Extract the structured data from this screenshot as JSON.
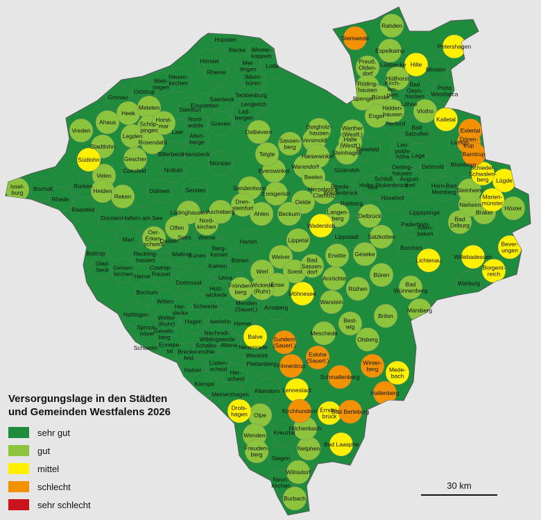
{
  "legend": {
    "title": "Versorgungslage in den Städten\nund Gemeinden Westfalens 2026",
    "categories": [
      {
        "label": "sehr gut",
        "color": "#1e8c3c",
        "municipalities": [
          "Hopsten",
          "Recke",
          "Wester-\nkappeln",
          "Hörstel",
          "Met-\ntingen",
          "Lotte",
          "Rheine",
          "Ibben-\nbüren",
          "Neuen-\nkirchen",
          "Wett-\nringen",
          "Ochtrup",
          "Gronau",
          "Emsdetten",
          "Steinfurt",
          "Tecklenburg",
          "Saerbeck",
          "Lengerich",
          "Lad-\nbergen",
          "Greven",
          "Nord-\nwalde",
          "Alten-\nberge",
          "Laer",
          "Billerbeck",
          "Havixbeck",
          "Münster",
          "Coesfeld",
          "Nottuln",
          "Dülmen",
          "Senden",
          "Borken",
          "Bocholt",
          "Rhede",
          "Raesfeld",
          "Dorsten",
          "Haltern am See",
          "Selm",
          "Werne",
          "Marl",
          "Datteln",
          "Reckling-\nhausen",
          "Bottrop",
          "Glad-\nbeck",
          "Gelsen-\nkirchen",
          "Castrop-\nRauxel",
          "Waltrop",
          "Lünen",
          "Berg-\nkamen",
          "Kamen",
          "Bönen",
          "Hamm",
          "Herne",
          "Dortmund",
          "Unna",
          "Holz-\nwickede",
          "Bochum",
          "Witten",
          "Her-\ndecke",
          "Schwerte",
          "Menden\n(Sauerl.)",
          "Arnsberg",
          "Hattingen",
          "Wetter\n(Ruhr)",
          "Hagen",
          "Iserlohn",
          "Hemer",
          "Sprock-\nhövel",
          "Gevels-\nberg",
          "Schwelm",
          "Ennepe-\ntal",
          "Brecker-\nfeld",
          "Nachrodt-\nWiblingwerde",
          "Altena",
          "Neuenrade",
          "Schalks-\nmühle",
          "Lüden-\nscheid",
          "Halver",
          "Kierspe",
          "Werdohl",
          "Plettenberg",
          "Her-\nscheid",
          "Meinerzhagen",
          "Attendorn",
          "Kreuztal",
          "Siegen",
          "Neun-\nkirchen",
          "Minden",
          "Porta\nWestfalica",
          "Bad\nOeyn-\nhausen",
          "Löhne",
          "Herford",
          "Bad\nSalzuflen",
          "Bielefeld",
          "Leo-\npolds-\nhöhe",
          "Oerling-\nhausen",
          "Lage",
          "Detmold",
          "Blomberg",
          "Lemgo",
          "Horn-Bad\nMeinberg",
          "Schloß\nHolte-Stukenbrock",
          "Verl",
          "Gütersloh",
          "Rheda-\nWiedenbrück",
          "Lippspringe",
          "Paderborn",
          "Borchen",
          "Warburg",
          "Alten-\nbeken",
          "Hövelhof",
          "August-\ndorf",
          "Lübbecke",
          "Kirch-\nlen-\ngern",
          "Lippstadt",
          "Rietberg"
        ]
      },
      {
        "label": "gut",
        "color": "#8cc43e",
        "municipalities": [
          "Rahden",
          "Espelkamp",
          "Preuß.\nOlden-\ndorf",
          "Hüllhorst",
          "Röding-\nhausen",
          "Bünde",
          "Hidden-\nhausen",
          "Enger",
          "Spenge",
          "Vlotho",
          "Borgholz-\nhausen",
          "Werther\n(Westf.)",
          "Versmold",
          "Halle\n(Westf.)",
          "Steinhagen",
          "Harsewinkel",
          "Sassen-\nberg",
          "Everswinkel",
          "Warendorf",
          "Beelen",
          "Sendenhorst",
          "Dren-\nsteinfurt",
          "Ennigerloh",
          "Oelde",
          "Herzebrock-\nClarholz",
          "Ahlen",
          "Beckum",
          "Lippetal",
          "Welver",
          "Soest",
          "Werl",
          "Ense",
          "Wickede\n(Ruhr)",
          "Bad\nSassen-\ndorf",
          "Anröchte",
          "Erwitte",
          "Geseke",
          "Rüthen",
          "Warstein",
          "Büren",
          "Bad\nWünnenberg",
          "Marsberg",
          "Brilon",
          "Olsberg",
          "Best-\nwig",
          "Meschede",
          "Delbrück",
          "Langen-\nberg",
          "Salzkotten",
          "Bad\nDriburg",
          "Brakel",
          "Höxter",
          "Nieheim",
          "Steinheim",
          "Heek",
          "Ahaus",
          "Metelen",
          "Schöp-\npingen",
          "Legden",
          "Rosendahl",
          "Vreden",
          "Stadtlohn",
          "Gescher",
          "Velen",
          "Heiden",
          "Reken",
          "Issel-\nburg",
          "Horst-\nmar",
          "Ostbevern",
          "Telgte",
          "Lüdinghausen",
          "Olfen",
          "Nord-\nkirchen",
          "Ascheberg",
          "Oer-\nErken-\nschwick",
          "Frönden-\nberg",
          "Olpe",
          "Wenden",
          "Freuden-\nberg",
          "Wilnsdorf",
          "Burbach",
          "Netphen",
          "Hilchenbach"
        ]
      },
      {
        "label": "mittel",
        "color": "#fff000",
        "municipalities": [
          "Petershagen",
          "Hille",
          "Kalletal",
          "Lügde",
          "Schieder-\nSchwalen-\nberg",
          "Marien-\nmünster",
          "Bever-\nungen",
          "Borgent-\nreich",
          "Lichtenau",
          "Willebadessen",
          "Wadersloh",
          "Möhnesee",
          "Balve",
          "Südlohn",
          "Lennestadt",
          "Drols-\nhagen",
          "Mede-\nbach",
          "Bad Laasphe",
          "Erndte-\nbrück"
        ]
      },
      {
        "label": "schlecht",
        "color": "#f29200",
        "municipalities": [
          "Stemwede",
          "Extertal",
          "Dören-\ntrup",
          "Barntrup",
          "Sundern\n(Sauerl.)",
          "Finnentrop",
          "Eslohe\n(Sauerl.)",
          "Schmallenberg",
          "Winter-\nberg",
          "Hallenberg",
          "Kirchhundem",
          "Bad Berleburg"
        ]
      },
      {
        "label": "sehr schlecht",
        "color": "#c8141e",
        "municipalities": []
      }
    ]
  },
  "scale_bar": {
    "label": "30 km"
  }
}
